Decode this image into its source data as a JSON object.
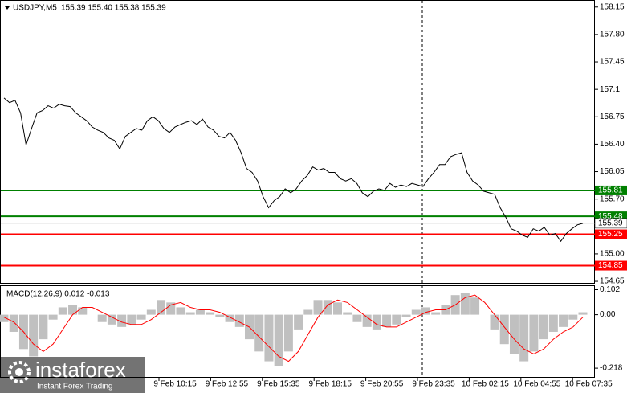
{
  "chart_data": {
    "type": "line",
    "quote": "155.39 155.40 155.38 155.39",
    "series": [
      {
        "name": "USDJPY,M5",
        "color": "#000000",
        "values": [
          156.99,
          156.93,
          156.96,
          156.8,
          156.39,
          156.6,
          156.8,
          156.83,
          156.89,
          156.86,
          156.91,
          156.89,
          156.88,
          156.8,
          156.75,
          156.7,
          156.62,
          156.58,
          156.55,
          156.48,
          156.45,
          156.34,
          156.5,
          156.55,
          156.6,
          156.58,
          156.7,
          156.75,
          156.7,
          156.6,
          156.55,
          156.62,
          156.65,
          156.68,
          156.7,
          156.65,
          156.72,
          156.62,
          156.58,
          156.5,
          156.48,
          156.55,
          156.45,
          156.29,
          156.09,
          156.04,
          155.93,
          155.73,
          155.59,
          155.68,
          155.73,
          155.83,
          155.78,
          155.83,
          155.93,
          156.0,
          156.11,
          156.07,
          156.09,
          156.04,
          156.04,
          155.96,
          155.93,
          155.96,
          155.9,
          155.78,
          155.73,
          155.8,
          155.83,
          155.81,
          155.9,
          155.85,
          155.88,
          155.86,
          155.9,
          155.88,
          155.86,
          155.96,
          156.04,
          156.14,
          156.14,
          156.24,
          156.27,
          156.29,
          156.04,
          155.93,
          155.88,
          155.8,
          155.78,
          155.76,
          155.59,
          155.47,
          155.32,
          155.29,
          155.24,
          155.21,
          155.32,
          155.29,
          155.34,
          155.24,
          155.26,
          155.16,
          155.26,
          155.32,
          155.37,
          155.39
        ]
      }
    ],
    "ylim": [
      154.63,
      158.24
    ],
    "yticks": [
      158.15,
      {
        "value": 157.8,
        "label": "157.80"
      },
      157.45,
      157.1,
      156.75,
      {
        "value": 156.4,
        "label": "156.40"
      },
      156.05,
      {
        "value": 155.7,
        "label": "155.70"
      },
      {
        "value": 155,
        "label": "155.00"
      },
      154.65
    ],
    "levels": [
      {
        "value": 155.81,
        "color": "#008000"
      },
      {
        "value": 155.48,
        "color": "#008000"
      },
      {
        "value": 155.25,
        "color": "#ff0000"
      },
      {
        "value": 154.85,
        "color": "#ff0000"
      }
    ],
    "last_price": 155.39,
    "x_labels": [
      "9 Feb 10:15",
      "9 Feb 12:55",
      "9 Feb 15:35",
      "9 Feb 18:15",
      "9 Feb 20:55",
      "9 Feb 23:35",
      "10 Feb 02:15",
      "10 Feb 04:55",
      "10 Feb 07:35"
    ],
    "watermark": {
      "brand": "instaforex",
      "tagline": "Instant Forex Trading"
    },
    "macd": {
      "type": "bar",
      "title": "MACD(12,26,9) 0.012 -0.013",
      "ylim": [
        -0.257,
        0.12
      ],
      "yticks": [
        0.102,
        {
          "value": 0,
          "label": "0.00"
        },
        -0.218
      ],
      "histogram": {
        "color": "#c0c0c0",
        "values": [
          -0.03,
          -0.07,
          -0.14,
          -0.17,
          -0.1,
          -0.02,
          0.03,
          0.04,
          0.03,
          0.0,
          -0.03,
          -0.04,
          -0.05,
          -0.04,
          -0.02,
          0.02,
          0.06,
          0.05,
          0.03,
          0.01,
          0.02,
          0.01,
          -0.01,
          -0.03,
          -0.05,
          -0.1,
          -0.15,
          -0.19,
          -0.21,
          -0.15,
          -0.06,
          0.02,
          0.06,
          0.06,
          0.05,
          0.01,
          -0.03,
          -0.05,
          -0.06,
          -0.05,
          -0.04,
          -0.01,
          0.02,
          0.03,
          0.01,
          0.04,
          0.08,
          0.09,
          0.07,
          0.0,
          -0.06,
          -0.12,
          -0.16,
          -0.19,
          -0.15,
          -0.1,
          -0.07,
          -0.05,
          -0.02,
          0.01
        ]
      },
      "signal": {
        "color": "#ff0000",
        "values": [
          -0.01,
          -0.03,
          -0.07,
          -0.12,
          -0.15,
          -0.12,
          -0.06,
          0.0,
          0.03,
          0.03,
          0.01,
          -0.01,
          -0.03,
          -0.04,
          -0.04,
          -0.02,
          0.01,
          0.04,
          0.05,
          0.03,
          0.02,
          0.02,
          0.01,
          -0.01,
          -0.03,
          -0.05,
          -0.09,
          -0.13,
          -0.17,
          -0.19,
          -0.15,
          -0.08,
          -0.01,
          0.04,
          0.06,
          0.05,
          0.02,
          -0.01,
          -0.04,
          -0.05,
          -0.05,
          -0.03,
          -0.01,
          0.01,
          0.02,
          0.02,
          0.04,
          0.07,
          0.08,
          0.05,
          0.0,
          -0.05,
          -0.1,
          -0.14,
          -0.16,
          -0.14,
          -0.1,
          -0.07,
          -0.05,
          -0.01
        ]
      }
    }
  }
}
